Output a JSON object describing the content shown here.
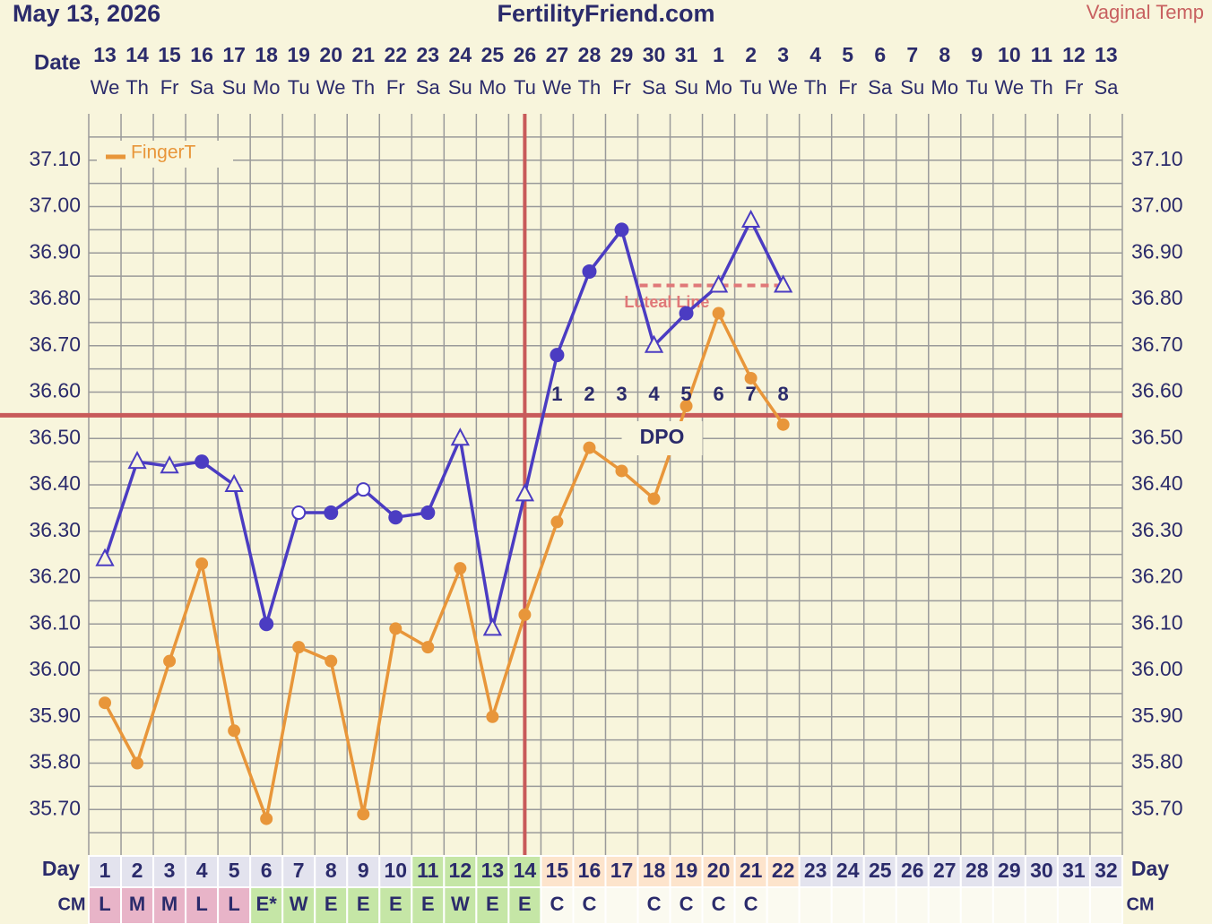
{
  "chart_data": {
    "type": "line",
    "title": "May 13, 2026",
    "site": "FertilityFriend.com",
    "date_label": "Date",
    "day_label": "Day",
    "cm_label": "CM",
    "categories": [
      "13",
      "14",
      "15",
      "16",
      "17",
      "18",
      "19",
      "20",
      "21",
      "22",
      "23",
      "24",
      "25",
      "26",
      "27",
      "28",
      "29",
      "30",
      "31",
      "1",
      "2",
      "3",
      "4",
      "5",
      "6",
      "7",
      "8",
      "9",
      "10",
      "11",
      "12",
      "13"
    ],
    "weekdays": [
      "We",
      "Th",
      "Fr",
      "Sa",
      "Su",
      "Mo",
      "Tu",
      "We",
      "Th",
      "Fr",
      "Sa",
      "Su",
      "Mo",
      "Tu",
      "We",
      "Th",
      "Fr",
      "Sa",
      "Su",
      "Mo",
      "Tu",
      "We",
      "Th",
      "Fr",
      "Sa",
      "Su",
      "Mo",
      "Tu",
      "We",
      "Th",
      "Fr",
      "Sa"
    ],
    "day_numbers": [
      1,
      2,
      3,
      4,
      5,
      6,
      7,
      8,
      9,
      10,
      11,
      12,
      13,
      14,
      15,
      16,
      17,
      18,
      19,
      20,
      21,
      22,
      23,
      24,
      25,
      26,
      27,
      28,
      29,
      30,
      31,
      32
    ],
    "cm": [
      "L",
      "M",
      "M",
      "L",
      "L",
      "E*",
      "W",
      "E",
      "E",
      "E",
      "E",
      "W",
      "E",
      "E",
      "C",
      "C",
      null,
      "C",
      "C",
      "C",
      "C",
      null,
      null,
      null,
      null,
      null,
      null,
      null,
      null,
      null,
      null,
      null
    ],
    "series": [
      {
        "name": "Vaginal Temp",
        "color": "#4b3cc2",
        "values": [
          36.24,
          36.45,
          36.44,
          36.45,
          36.4,
          36.1,
          36.34,
          36.34,
          36.39,
          36.33,
          36.34,
          36.5,
          36.09,
          36.38,
          36.68,
          36.86,
          36.95,
          36.7,
          36.77,
          36.83,
          36.97,
          36.83,
          null,
          null,
          null,
          null,
          null,
          null,
          null,
          null,
          null,
          null
        ],
        "markers": [
          "triangle",
          "triangle",
          "triangle",
          "dot",
          "triangle",
          "dot",
          "circle",
          "dot",
          "circle",
          "dot",
          "dot",
          "triangle",
          "triangle",
          "triangle",
          "dot",
          "dot",
          "dot",
          "triangle",
          "dot",
          "triangle",
          "triangle",
          "triangle",
          null,
          null,
          null,
          null,
          null,
          null,
          null,
          null,
          null,
          null
        ]
      },
      {
        "name": "FingerT",
        "color": "#e8963a",
        "values": [
          35.93,
          35.8,
          36.02,
          36.23,
          35.87,
          35.68,
          36.05,
          36.02,
          35.69,
          36.09,
          36.05,
          36.22,
          35.9,
          36.12,
          36.32,
          36.48,
          36.43,
          36.37,
          36.57,
          36.77,
          36.63,
          36.53,
          null,
          null,
          null,
          null,
          null,
          null,
          null,
          null,
          null,
          null
        ],
        "marker": "dot"
      }
    ],
    "ylim": [
      35.6,
      37.2
    ],
    "yticks": [
      {
        "value": 35.7,
        "label": "35.70"
      },
      {
        "value": 35.8,
        "label": "35.80"
      },
      {
        "value": 35.9,
        "label": "35.90"
      },
      {
        "value": 36.0,
        "label": "36.00"
      },
      {
        "value": 36.1,
        "label": "36.10"
      },
      {
        "value": 36.2,
        "label": "36.20"
      },
      {
        "value": 36.3,
        "label": "36.30"
      },
      {
        "value": 36.4,
        "label": "36.40"
      },
      {
        "value": 36.5,
        "label": "36.50"
      },
      {
        "value": 36.6,
        "label": "36.60"
      },
      {
        "value": 36.7,
        "label": "36.70"
      },
      {
        "value": 36.8,
        "label": "36.80"
      },
      {
        "value": 36.9,
        "label": "36.90"
      },
      {
        "value": 37.0,
        "label": "37.00"
      },
      {
        "value": 37.1,
        "label": "37.10"
      }
    ],
    "grid": true,
    "legend": "top-left",
    "coverline": 36.55,
    "coverline_color": "#c85a5a",
    "ovulation_day": 14,
    "luteal_line": {
      "label": "Luteal Line",
      "value": 36.83,
      "color": "#e07878"
    },
    "dpo_label": "DPO",
    "dpo": [
      null,
      null,
      null,
      null,
      null,
      null,
      null,
      null,
      null,
      null,
      null,
      null,
      null,
      null,
      1,
      2,
      3,
      4,
      5,
      6,
      7,
      8,
      null,
      null,
      null,
      null,
      null,
      null,
      null,
      null,
      null,
      null
    ]
  }
}
